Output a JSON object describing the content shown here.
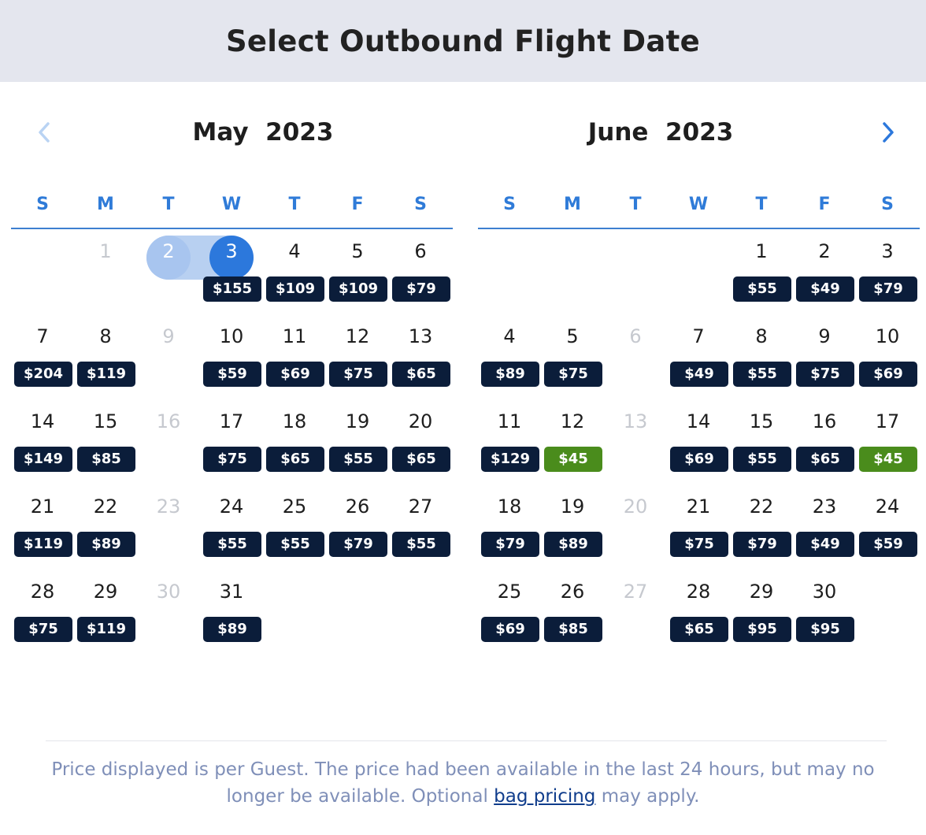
{
  "header": {
    "title": "Select Outbound Flight Date"
  },
  "nav": {
    "prev_icon": "chevron-left-icon",
    "next_icon": "chevron-right-icon"
  },
  "weekdays": [
    "S",
    "M",
    "T",
    "W",
    "T",
    "F",
    "S"
  ],
  "months": [
    {
      "title": "May  2023",
      "weeks": [
        [
          null,
          {
            "d": "1",
            "disabled": true
          },
          {
            "d": "2",
            "disabled": true,
            "range_start": true
          },
          {
            "d": "3",
            "price": "$155",
            "selected": true
          },
          {
            "d": "4",
            "price": "$109"
          },
          {
            "d": "5",
            "price": "$109"
          },
          {
            "d": "6",
            "price": "$79"
          }
        ],
        [
          {
            "d": "7",
            "price": "$204"
          },
          {
            "d": "8",
            "price": "$119"
          },
          {
            "d": "9",
            "disabled": true
          },
          {
            "d": "10",
            "price": "$59"
          },
          {
            "d": "11",
            "price": "$69"
          },
          {
            "d": "12",
            "price": "$75"
          },
          {
            "d": "13",
            "price": "$65"
          }
        ],
        [
          {
            "d": "14",
            "price": "$149"
          },
          {
            "d": "15",
            "price": "$85"
          },
          {
            "d": "16",
            "disabled": true
          },
          {
            "d": "17",
            "price": "$75"
          },
          {
            "d": "18",
            "price": "$65"
          },
          {
            "d": "19",
            "price": "$55"
          },
          {
            "d": "20",
            "price": "$65"
          }
        ],
        [
          {
            "d": "21",
            "price": "$119"
          },
          {
            "d": "22",
            "price": "$89"
          },
          {
            "d": "23",
            "disabled": true
          },
          {
            "d": "24",
            "price": "$55"
          },
          {
            "d": "25",
            "price": "$55"
          },
          {
            "d": "26",
            "price": "$79"
          },
          {
            "d": "27",
            "price": "$55"
          }
        ],
        [
          {
            "d": "28",
            "price": "$75"
          },
          {
            "d": "29",
            "price": "$119"
          },
          {
            "d": "30",
            "disabled": true
          },
          {
            "d": "31",
            "price": "$89"
          },
          null,
          null,
          null
        ]
      ]
    },
    {
      "title": "June  2023",
      "weeks": [
        [
          null,
          null,
          null,
          null,
          {
            "d": "1",
            "price": "$55"
          },
          {
            "d": "2",
            "price": "$49"
          },
          {
            "d": "3",
            "price": "$79"
          }
        ],
        [
          {
            "d": "4",
            "price": "$89"
          },
          {
            "d": "5",
            "price": "$75"
          },
          {
            "d": "6",
            "disabled": true
          },
          {
            "d": "7",
            "price": "$49"
          },
          {
            "d": "8",
            "price": "$55"
          },
          {
            "d": "9",
            "price": "$75"
          },
          {
            "d": "10",
            "price": "$69"
          }
        ],
        [
          {
            "d": "11",
            "price": "$129"
          },
          {
            "d": "12",
            "price": "$45",
            "low": true
          },
          {
            "d": "13",
            "disabled": true
          },
          {
            "d": "14",
            "price": "$69"
          },
          {
            "d": "15",
            "price": "$55"
          },
          {
            "d": "16",
            "price": "$65"
          },
          {
            "d": "17",
            "price": "$45",
            "low": true
          }
        ],
        [
          {
            "d": "18",
            "price": "$79"
          },
          {
            "d": "19",
            "price": "$89"
          },
          {
            "d": "20",
            "disabled": true
          },
          {
            "d": "21",
            "price": "$75"
          },
          {
            "d": "22",
            "price": "$79"
          },
          {
            "d": "23",
            "price": "$49"
          },
          {
            "d": "24",
            "price": "$59"
          }
        ],
        [
          {
            "d": "25",
            "price": "$69"
          },
          {
            "d": "26",
            "price": "$85"
          },
          {
            "d": "27",
            "disabled": true
          },
          {
            "d": "28",
            "price": "$65"
          },
          {
            "d": "29",
            "price": "$95"
          },
          {
            "d": "30",
            "price": "$95"
          },
          null
        ]
      ]
    }
  ],
  "colors": {
    "accent": "#2c78dc",
    "price_badge": "#0b1d3a",
    "lowest_price_badge": "#4a8c1c",
    "disabled_text": "#c6c9cf"
  },
  "footer": {
    "text_before": "Price displayed is per Guest. The price had been available in the last 24 hours, but may no longer be available. Optional ",
    "link": "bag pricing",
    "text_after": " may apply."
  }
}
